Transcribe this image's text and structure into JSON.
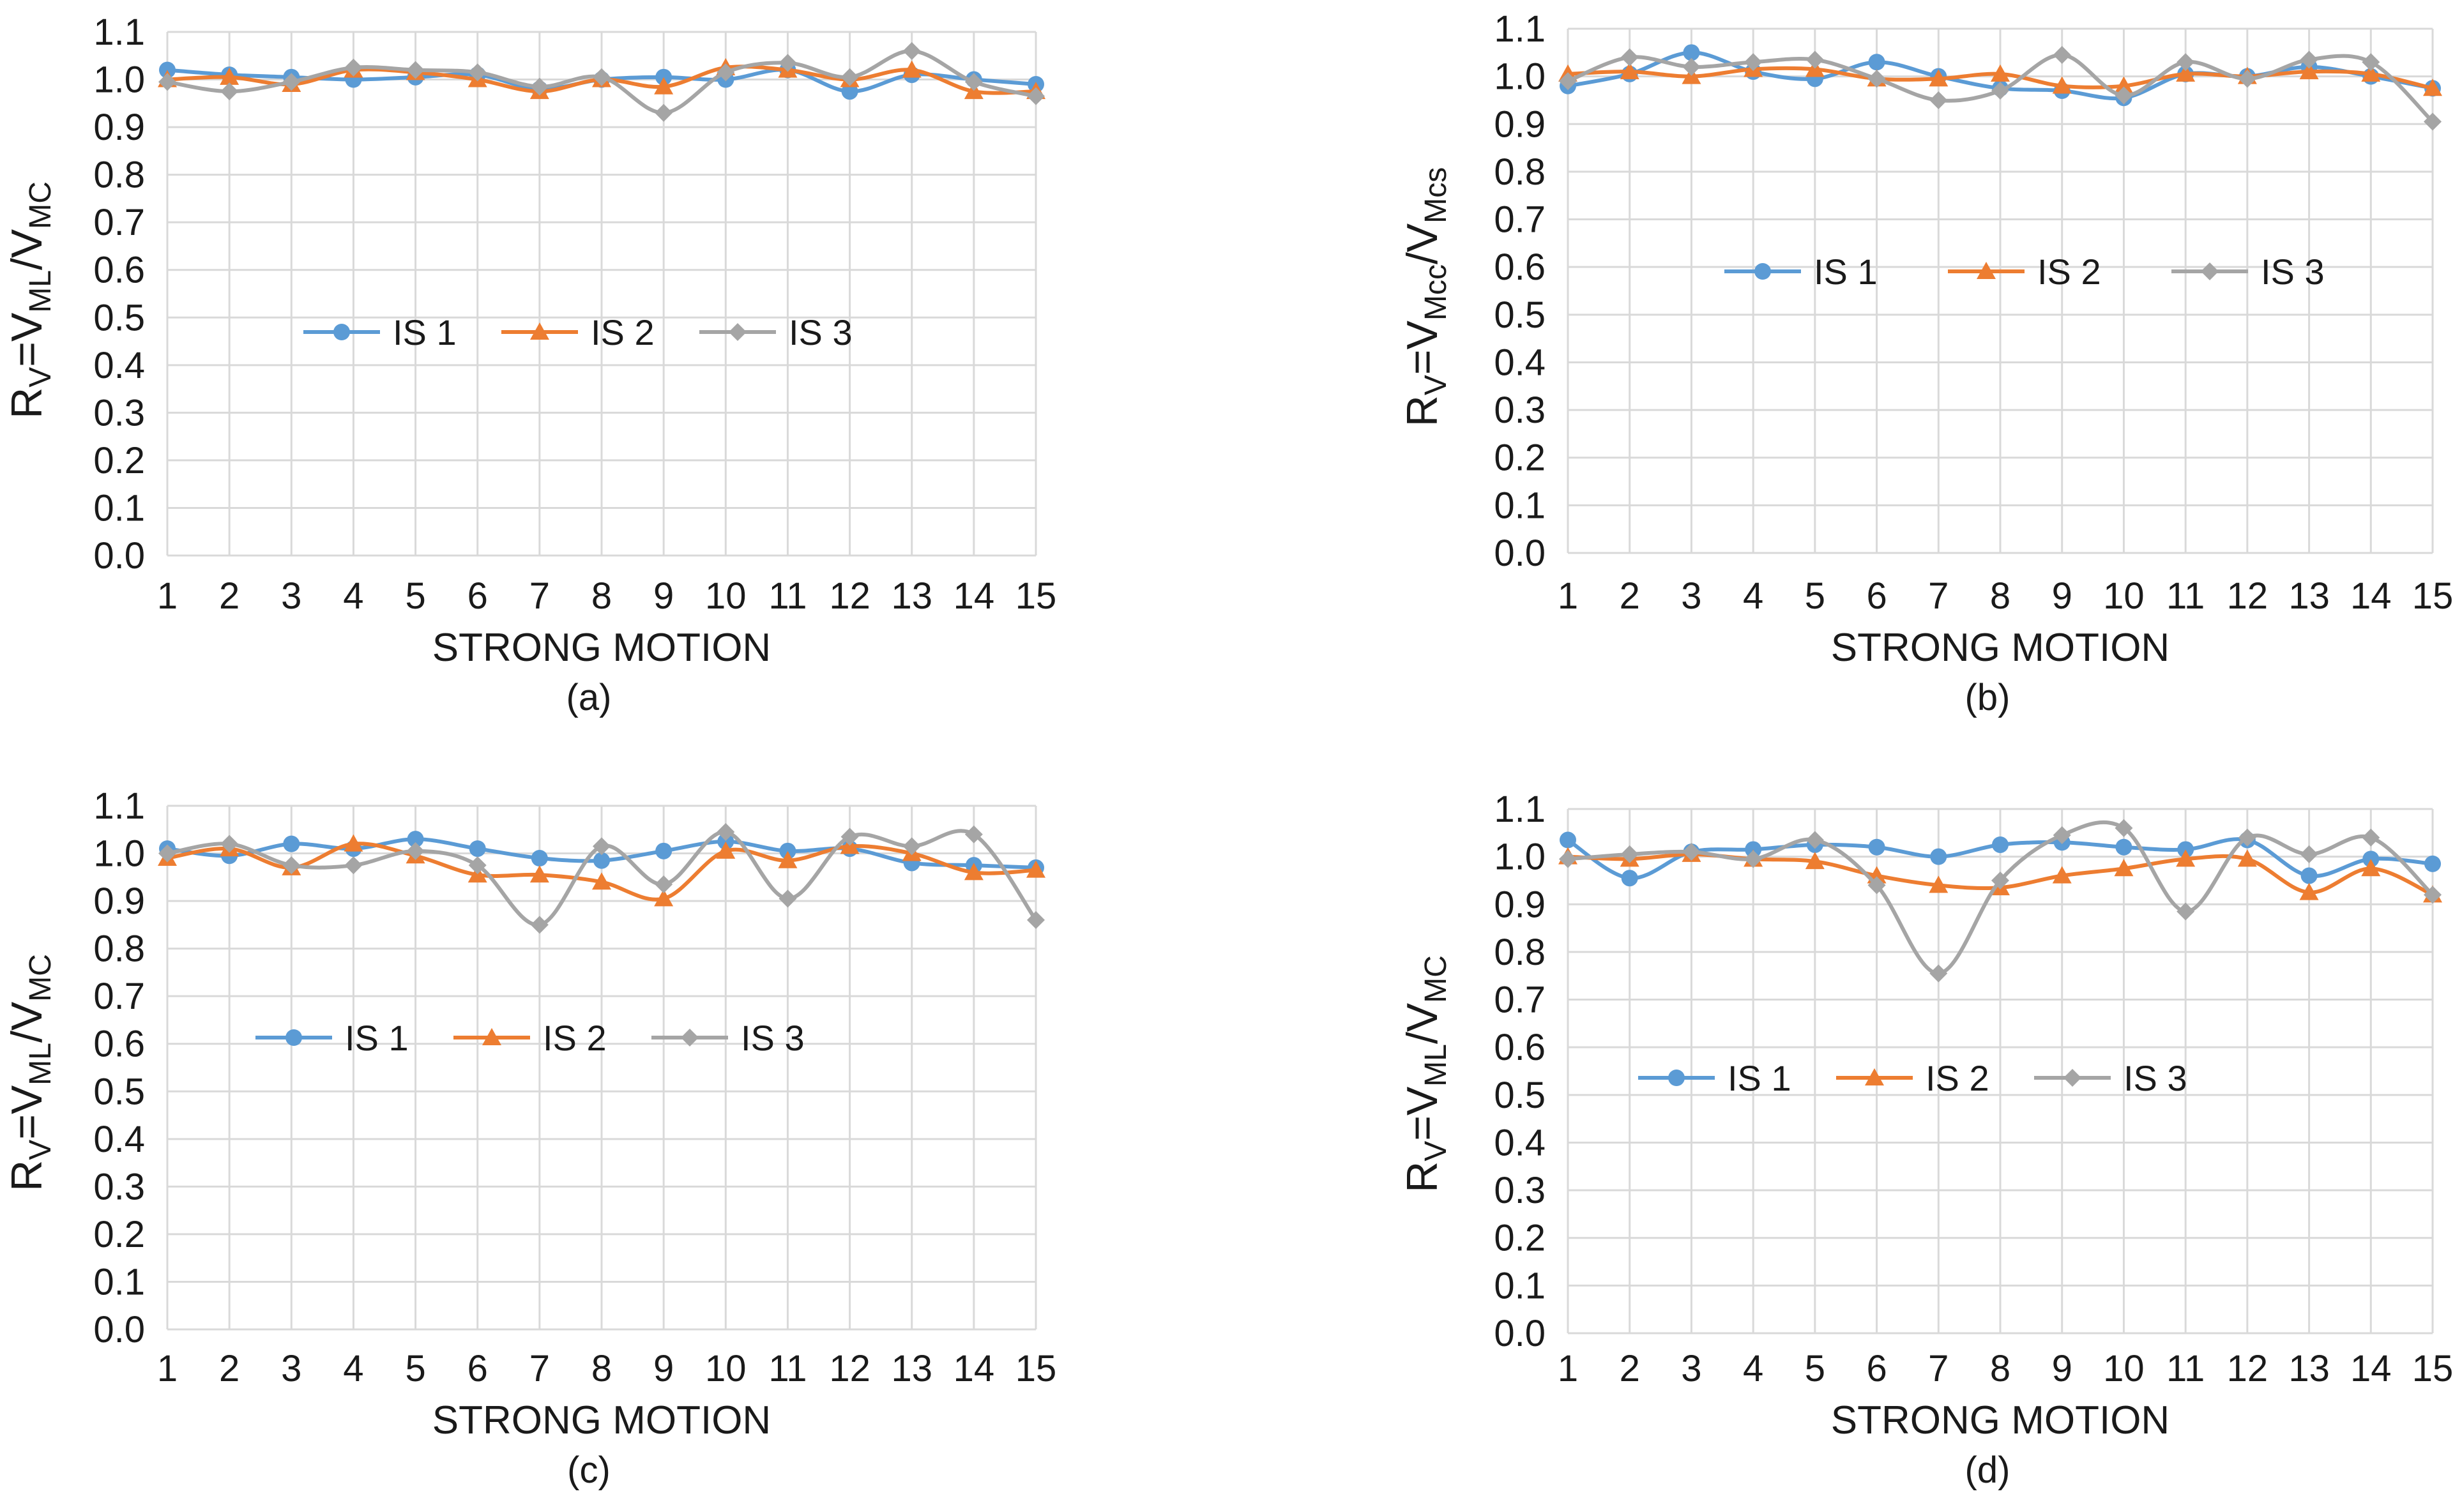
{
  "chart_data": [
    {
      "type": "line",
      "caption": "(a)",
      "xlabel": "STRONG MOTION",
      "ylabel": "R_V=V_ML/V_MC",
      "ylabel_parts": {
        "base": "R",
        "base_sub": "V",
        "eq": "=V",
        "sub1": "ML",
        "slash": "/V",
        "sub2": "MC"
      },
      "categories": [
        "1",
        "2",
        "3",
        "4",
        "5",
        "6",
        "7",
        "8",
        "9",
        "10",
        "11",
        "12",
        "13",
        "14",
        "15"
      ],
      "ylim": [
        0,
        1.1
      ],
      "yticks": [
        "0.0",
        "0.1",
        "0.2",
        "0.3",
        "0.4",
        "0.5",
        "0.6",
        "0.7",
        "0.8",
        "0.9",
        "1.0",
        "1.1"
      ],
      "grid": true,
      "legend": "center",
      "series": [
        {
          "name": "IS 1",
          "values": [
            1.02,
            1.01,
            1.005,
            1.0,
            1.005,
            1.01,
            0.98,
            1.0,
            1.005,
            1.0,
            1.02,
            0.975,
            1.01,
            1.0,
            0.99
          ]
        },
        {
          "name": "IS 2",
          "values": [
            1.0,
            1.005,
            0.99,
            1.02,
            1.015,
            1.0,
            0.975,
            1.0,
            0.985,
            1.025,
            1.02,
            1.0,
            1.02,
            0.975,
            0.975
          ]
        },
        {
          "name": "IS 3",
          "values": [
            0.995,
            0.975,
            0.995,
            1.025,
            1.02,
            1.015,
            0.985,
            1.005,
            0.93,
            1.015,
            1.035,
            1.005,
            1.06,
            0.995,
            0.965
          ]
        }
      ]
    },
    {
      "type": "line",
      "caption": "(b)",
      "xlabel": "STRONG MOTION",
      "ylabel": "R_V=V_Mcc/V_Mcs",
      "ylabel_parts": {
        "base": "R",
        "base_sub": "V",
        "eq": "=V",
        "sub1": "Mcc",
        "slash": "/V",
        "sub2": "Mcs"
      },
      "categories": [
        "1",
        "2",
        "3",
        "4",
        "5",
        "6",
        "7",
        "8",
        "9",
        "10",
        "11",
        "12",
        "13",
        "14",
        "15"
      ],
      "ylim": [
        0,
        1.1
      ],
      "yticks": [
        "0.0",
        "0.1",
        "0.2",
        "0.3",
        "0.4",
        "0.5",
        "0.6",
        "0.7",
        "0.8",
        "0.9",
        "1.0",
        "1.1"
      ],
      "grid": true,
      "legend": "center-top",
      "series": [
        {
          "name": "IS 1",
          "values": [
            0.98,
            1.005,
            1.05,
            1.01,
            0.995,
            1.03,
            1.0,
            0.975,
            0.97,
            0.955,
            1.005,
            1.0,
            1.02,
            1.0,
            0.975
          ]
        },
        {
          "name": "IS 2",
          "values": [
            1.005,
            1.01,
            1.0,
            1.015,
            1.015,
            0.995,
            0.995,
            1.005,
            0.98,
            0.98,
            1.005,
            1.0,
            1.01,
            1.005,
            0.975
          ]
        },
        {
          "name": "IS 3",
          "values": [
            0.99,
            1.04,
            1.02,
            1.03,
            1.035,
            0.995,
            0.95,
            0.97,
            1.045,
            0.96,
            1.03,
            0.995,
            1.035,
            1.03,
            0.905
          ]
        }
      ]
    },
    {
      "type": "line",
      "caption": "(c)",
      "xlabel": "STRONG MOTION",
      "ylabel": "R_V=V_ML/V_MC",
      "ylabel_parts": {
        "base": "R",
        "base_sub": "V",
        "eq": "=V",
        "sub1": "ML",
        "slash": "/V",
        "sub2": "MC"
      },
      "categories": [
        "1",
        "2",
        "3",
        "4",
        "5",
        "6",
        "7",
        "8",
        "9",
        "10",
        "11",
        "12",
        "13",
        "14",
        "15"
      ],
      "ylim": [
        0,
        1.1
      ],
      "yticks": [
        "0.0",
        "0.1",
        "0.2",
        "0.3",
        "0.4",
        "0.5",
        "0.6",
        "0.7",
        "0.8",
        "0.9",
        "1.0",
        "1.1"
      ],
      "grid": true,
      "legend": "center",
      "series": [
        {
          "name": "IS 1",
          "values": [
            1.01,
            0.995,
            1.02,
            1.01,
            1.03,
            1.01,
            0.99,
            0.985,
            1.005,
            1.025,
            1.005,
            1.01,
            0.98,
            0.975,
            0.97
          ]
        },
        {
          "name": "IS 2",
          "values": [
            0.99,
            1.01,
            0.97,
            1.02,
            0.995,
            0.955,
            0.955,
            0.94,
            0.905,
            1.005,
            0.985,
            1.015,
            1.0,
            0.96,
            0.965
          ]
        },
        {
          "name": "IS 3",
          "values": [
            1.0,
            1.02,
            0.975,
            0.975,
            1.005,
            0.975,
            0.85,
            1.015,
            0.935,
            1.045,
            0.905,
            1.035,
            1.015,
            1.04,
            0.86
          ]
        }
      ]
    },
    {
      "type": "line",
      "caption": "(d)",
      "xlabel": "STRONG MOTION",
      "ylabel": "R_V=V_ML/V_MC",
      "ylabel_parts": {
        "base": "R",
        "base_sub": "V",
        "eq": "=V",
        "sub1": "ML",
        "slash": "/V",
        "sub2": "MC"
      },
      "categories": [
        "1",
        "2",
        "3",
        "4",
        "5",
        "6",
        "7",
        "8",
        "9",
        "10",
        "11",
        "12",
        "13",
        "14",
        "15"
      ],
      "ylim": [
        0,
        1.1
      ],
      "yticks": [
        "0.0",
        "0.1",
        "0.2",
        "0.3",
        "0.4",
        "0.5",
        "0.6",
        "0.7",
        "0.8",
        "0.9",
        "1.0",
        "1.1"
      ],
      "grid": true,
      "legend": "center",
      "series": [
        {
          "name": "IS 1",
          "values": [
            1.035,
            0.955,
            1.01,
            1.015,
            1.025,
            1.02,
            1.0,
            1.025,
            1.03,
            1.02,
            1.015,
            1.035,
            0.96,
            0.995,
            0.985
          ]
        },
        {
          "name": "IS 2",
          "values": [
            1.0,
            0.995,
            1.005,
            0.995,
            0.99,
            0.96,
            0.94,
            0.935,
            0.96,
            0.975,
            0.995,
            0.995,
            0.925,
            0.975,
            0.92
          ]
        },
        {
          "name": "IS 3",
          "values": [
            0.995,
            1.005,
            1.01,
            0.995,
            1.035,
            0.94,
            0.755,
            0.95,
            1.045,
            1.06,
            0.885,
            1.04,
            1.005,
            1.04,
            0.92
          ]
        }
      ]
    }
  ],
  "series_colors": [
    "#5B9BD5",
    "#ED7D31",
    "#A5A5A5"
  ],
  "series_markers": [
    "circle-marker",
    "triangle-marker",
    "diamond-marker"
  ]
}
